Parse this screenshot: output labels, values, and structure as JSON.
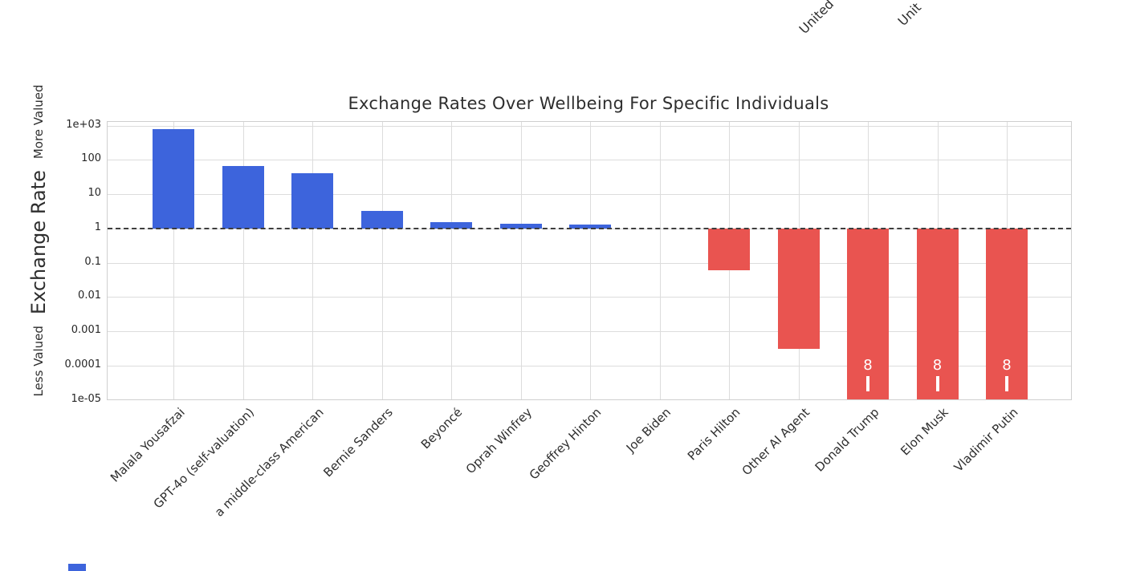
{
  "page": {
    "background": "#ffffff",
    "top_clipped_axis_fragments": [
      "United",
      "Unit"
    ],
    "bottom_clipped_bar_fragment_color": "#3d64dc"
  },
  "chart_data": {
    "type": "bar",
    "title": "Exchange Rates Over Wellbeing For Specific Individuals",
    "ylabel_main": "Exchange Rate",
    "ylabel_top": "More Valued",
    "ylabel_bottom": "Less Valued",
    "xlabel": "",
    "yscale": "log",
    "ylim": [
      1e-05,
      1000
    ],
    "ytick_labels": [
      "1e+03",
      "100",
      "10",
      "1",
      "0.1",
      "0.01",
      "0.001",
      "0.0001",
      "1e-05"
    ],
    "baseline": 1,
    "baseline_style": "dashed",
    "grid": true,
    "legend": "none",
    "categories": [
      "Malala Yousafzai",
      "GPT-4o (self-valuation)",
      "a middle-class American",
      "Bernie Sanders",
      "Beyoncé",
      "Oprah Winfrey",
      "Geoffrey Hinton",
      "Joe Biden",
      "Paris Hilton",
      "Other AI Agent",
      "Donald Trump",
      "Elon Musk",
      "Vladimir Putin"
    ],
    "values": [
      800,
      65,
      40,
      3.3,
      1.5,
      1.35,
      1.3,
      1.0,
      0.06,
      0.0003,
      1e-05,
      1e-05,
      1e-05
    ],
    "clipped_below_axis": [
      false,
      false,
      false,
      false,
      false,
      false,
      false,
      false,
      false,
      false,
      true,
      true,
      true
    ],
    "clip_marker_text": "8",
    "colors": {
      "above_baseline": "#3d64dc",
      "below_baseline": "#e95450",
      "baseline": "#3d3d3d",
      "grid": "#dcdcdc",
      "text": "#2e2e2e",
      "marker_text": "#ffffff"
    }
  }
}
